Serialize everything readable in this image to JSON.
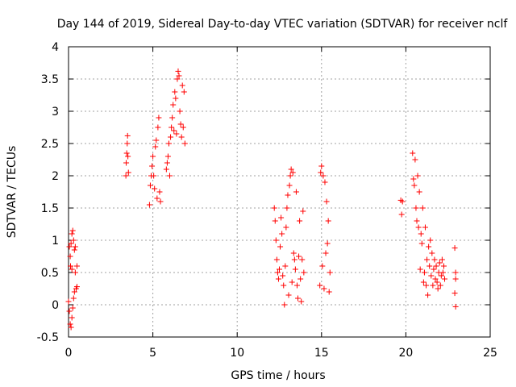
{
  "chart_data": {
    "type": "scatter",
    "title": "Day 144 of 2019, Sidereal Day-to-day VTEC variation (SDTVAR) for receiver nclf",
    "xlabel": "GPS time / hours",
    "ylabel": "SDTVAR / TECUs",
    "xlim": [
      0,
      25
    ],
    "ylim": [
      -0.5,
      4
    ],
    "xticks": [
      0,
      5,
      10,
      15,
      20,
      25
    ],
    "xtick_labels": [
      "0",
      "5",
      "10",
      "15",
      "20",
      "25"
    ],
    "yticks": [
      -0.5,
      0,
      0.5,
      1,
      1.5,
      2,
      2.5,
      3,
      3.5,
      4
    ],
    "ytick_labels": [
      "-0.5",
      "0",
      "0.5",
      "1",
      "1.5",
      "2",
      "2.5",
      "3",
      "3.5",
      "4"
    ],
    "grid": true,
    "marker": "+",
    "color": "#ff0000",
    "series": [
      {
        "name": "SDTVAR",
        "points": [
          [
            0.0,
            0.05
          ],
          [
            0.05,
            0.9
          ],
          [
            0.05,
            -0.1
          ],
          [
            0.1,
            0.75
          ],
          [
            0.1,
            -0.3
          ],
          [
            0.12,
            0.6
          ],
          [
            0.15,
            0.95
          ],
          [
            0.15,
            -0.35
          ],
          [
            0.2,
            1.1
          ],
          [
            0.2,
            0.55
          ],
          [
            0.2,
            -0.2
          ],
          [
            0.25,
            1.15
          ],
          [
            0.25,
            -0.05
          ],
          [
            0.3,
            1.0
          ],
          [
            0.3,
            0.1
          ],
          [
            0.35,
            0.85
          ],
          [
            0.35,
            0.2
          ],
          [
            0.4,
            0.9
          ],
          [
            0.4,
            0.5
          ],
          [
            0.45,
            0.25
          ],
          [
            0.5,
            0.28
          ],
          [
            0.5,
            0.6
          ],
          [
            3.4,
            2.0
          ],
          [
            3.42,
            2.2
          ],
          [
            3.45,
            2.35
          ],
          [
            3.48,
            2.5
          ],
          [
            3.5,
            2.62
          ],
          [
            3.52,
            2.3
          ],
          [
            3.55,
            2.05
          ],
          [
            4.8,
            1.55
          ],
          [
            4.85,
            1.85
          ],
          [
            4.9,
            2.0
          ],
          [
            4.95,
            2.15
          ],
          [
            5.0,
            2.3
          ],
          [
            5.05,
            2.0
          ],
          [
            5.1,
            1.8
          ],
          [
            5.15,
            2.45
          ],
          [
            5.2,
            2.55
          ],
          [
            5.25,
            1.65
          ],
          [
            5.3,
            2.75
          ],
          [
            5.35,
            2.9
          ],
          [
            5.4,
            1.75
          ],
          [
            5.45,
            1.6
          ],
          [
            5.8,
            2.1
          ],
          [
            5.85,
            2.2
          ],
          [
            5.9,
            2.3
          ],
          [
            5.95,
            2.5
          ],
          [
            6.0,
            2.0
          ],
          [
            6.05,
            2.6
          ],
          [
            6.1,
            2.75
          ],
          [
            6.15,
            2.9
          ],
          [
            6.2,
            3.1
          ],
          [
            6.25,
            2.7
          ],
          [
            6.3,
            3.3
          ],
          [
            6.35,
            3.2
          ],
          [
            6.4,
            2.65
          ],
          [
            6.45,
            3.5
          ],
          [
            6.5,
            3.62
          ],
          [
            6.55,
            3.55
          ],
          [
            6.6,
            3.0
          ],
          [
            6.65,
            2.8
          ],
          [
            6.7,
            2.6
          ],
          [
            6.75,
            3.4
          ],
          [
            6.8,
            2.75
          ],
          [
            6.85,
            3.3
          ],
          [
            6.9,
            2.5
          ],
          [
            12.2,
            1.5
          ],
          [
            12.25,
            1.3
          ],
          [
            12.3,
            1.0
          ],
          [
            12.35,
            0.7
          ],
          [
            12.4,
            0.5
          ],
          [
            12.45,
            0.4
          ],
          [
            12.5,
            0.55
          ],
          [
            12.55,
            0.9
          ],
          [
            12.6,
            1.35
          ],
          [
            12.65,
            1.1
          ],
          [
            12.7,
            0.45
          ],
          [
            12.75,
            0.3
          ],
          [
            12.8,
            0.0
          ],
          [
            12.85,
            0.6
          ],
          [
            12.9,
            1.2
          ],
          [
            12.95,
            1.5
          ],
          [
            13.0,
            1.7
          ],
          [
            13.05,
            0.15
          ],
          [
            13.1,
            1.85
          ],
          [
            13.15,
            2.0
          ],
          [
            13.2,
            2.1
          ],
          [
            13.25,
            0.35
          ],
          [
            13.3,
            2.05
          ],
          [
            13.35,
            0.8
          ],
          [
            13.4,
            0.7
          ],
          [
            13.45,
            0.55
          ],
          [
            13.5,
            1.75
          ],
          [
            13.55,
            0.3
          ],
          [
            13.6,
            0.1
          ],
          [
            13.65,
            0.75
          ],
          [
            13.7,
            1.3
          ],
          [
            13.75,
            0.4
          ],
          [
            13.8,
            0.05
          ],
          [
            13.85,
            0.7
          ],
          [
            13.9,
            1.45
          ],
          [
            13.95,
            0.5
          ],
          [
            14.9,
            0.3
          ],
          [
            14.95,
            2.05
          ],
          [
            15.0,
            2.15
          ],
          [
            15.05,
            0.6
          ],
          [
            15.1,
            2.0
          ],
          [
            15.15,
            0.25
          ],
          [
            15.2,
            1.9
          ],
          [
            15.25,
            0.8
          ],
          [
            15.3,
            1.6
          ],
          [
            15.35,
            0.95
          ],
          [
            15.4,
            1.3
          ],
          [
            15.45,
            0.2
          ],
          [
            15.5,
            0.5
          ],
          [
            19.7,
            1.62
          ],
          [
            19.75,
            1.4
          ],
          [
            19.8,
            1.6
          ],
          [
            20.4,
            2.35
          ],
          [
            20.45,
            1.95
          ],
          [
            20.5,
            1.85
          ],
          [
            20.55,
            2.25
          ],
          [
            20.6,
            1.5
          ],
          [
            20.65,
            1.3
          ],
          [
            20.7,
            2.0
          ],
          [
            20.75,
            1.2
          ],
          [
            20.8,
            1.75
          ],
          [
            20.85,
            0.55
          ],
          [
            20.9,
            1.1
          ],
          [
            20.95,
            0.95
          ],
          [
            21.0,
            1.5
          ],
          [
            21.05,
            0.35
          ],
          [
            21.1,
            0.5
          ],
          [
            21.15,
            1.2
          ],
          [
            21.2,
            0.3
          ],
          [
            21.25,
            0.7
          ],
          [
            21.3,
            0.15
          ],
          [
            21.35,
            0.9
          ],
          [
            21.4,
            0.6
          ],
          [
            21.45,
            1.0
          ],
          [
            21.5,
            0.45
          ],
          [
            21.55,
            0.8
          ],
          [
            21.6,
            0.3
          ],
          [
            21.65,
            0.55
          ],
          [
            21.7,
            0.7
          ],
          [
            21.75,
            0.4
          ],
          [
            21.8,
            0.6
          ],
          [
            21.85,
            0.35
          ],
          [
            21.9,
            0.25
          ],
          [
            21.95,
            0.5
          ],
          [
            22.0,
            0.65
          ],
          [
            22.05,
            0.3
          ],
          [
            22.1,
            0.45
          ],
          [
            22.15,
            0.7
          ],
          [
            22.2,
            0.5
          ],
          [
            22.25,
            0.6
          ],
          [
            22.3,
            0.4
          ],
          [
            22.9,
            0.88
          ],
          [
            22.95,
            0.5
          ],
          [
            22.95,
            0.4
          ],
          [
            22.9,
            0.18
          ],
          [
            22.95,
            -0.03
          ]
        ]
      }
    ]
  }
}
